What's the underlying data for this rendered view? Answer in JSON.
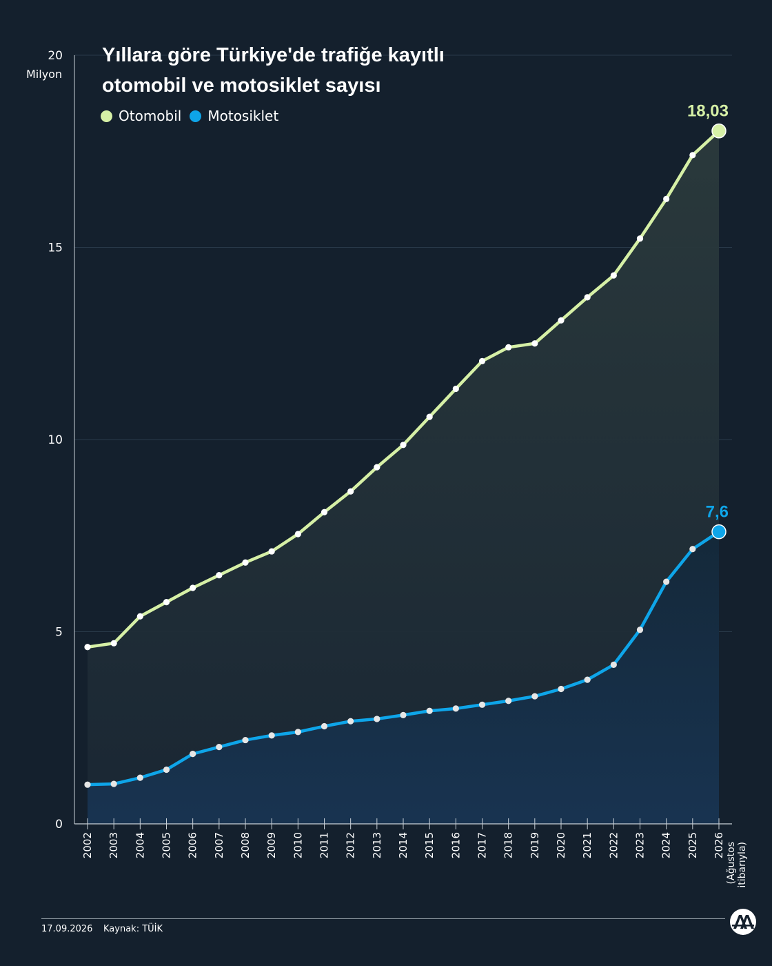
{
  "title_line1": "Yıllara göre Türkiye'de trafiğe kayıtlı",
  "title_line2": "otomobil ve motosiklet sayısı",
  "unit_label": "Milyon",
  "footer": {
    "date": "17.09.2026",
    "source": "Kaynak: TÜİK"
  },
  "colors": {
    "background": "#14202d",
    "otomobil": "#d6f0a6",
    "motosiklet": "#0ea5e9"
  },
  "logo_icon": "aa-logo-icon",
  "chart_data": {
    "type": "line",
    "title": "Yıllara göre Türkiye'de trafiğe kayıtlı otomobil ve motosiklet sayısı",
    "ylabel": "Milyon",
    "ylim": [
      0,
      20
    ],
    "yticks": [
      0,
      5,
      10,
      15,
      20
    ],
    "grid": true,
    "legend_position": "top-left",
    "categories": [
      "2002",
      "2003",
      "2004",
      "2005",
      "2006",
      "2007",
      "2008",
      "2009",
      "2010",
      "2011",
      "2012",
      "2013",
      "2014",
      "2015",
      "2016",
      "2017",
      "2018",
      "2019",
      "2020",
      "2021",
      "2022",
      "2023",
      "2024",
      "2025",
      "2026"
    ],
    "category_note_last": "(Ağustos itibarıyla)",
    "series": [
      {
        "name": "Otomobil",
        "color": "#d6f0a6",
        "end_label": "18,03",
        "values": [
          4.6,
          4.7,
          5.4,
          5.77,
          6.14,
          6.47,
          6.8,
          7.09,
          7.54,
          8.11,
          8.65,
          9.28,
          9.86,
          10.59,
          11.32,
          12.04,
          12.4,
          12.5,
          13.1,
          13.7,
          14.27,
          15.23,
          16.26,
          17.4,
          18.03
        ]
      },
      {
        "name": "Motosiklet",
        "color": "#0ea5e9",
        "end_label": "7,6",
        "values": [
          1.02,
          1.04,
          1.2,
          1.41,
          1.82,
          2.0,
          2.18,
          2.3,
          2.39,
          2.54,
          2.67,
          2.73,
          2.83,
          2.94,
          3.0,
          3.1,
          3.2,
          3.32,
          3.51,
          3.75,
          4.14,
          5.05,
          6.3,
          7.15,
          7.6
        ]
      }
    ]
  }
}
